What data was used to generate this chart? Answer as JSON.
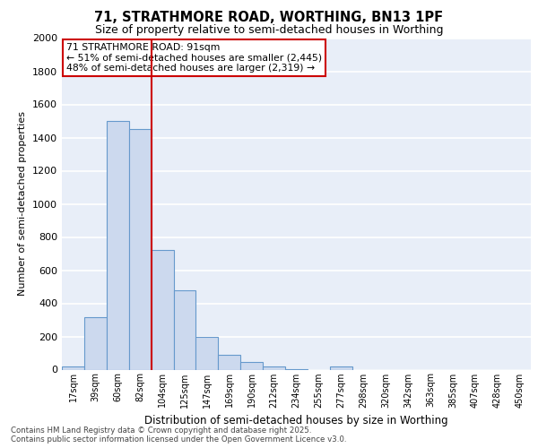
{
  "title1": "71, STRATHMORE ROAD, WORTHING, BN13 1PF",
  "title2": "Size of property relative to semi-detached houses in Worthing",
  "xlabel": "Distribution of semi-detached houses by size in Worthing",
  "ylabel": "Number of semi-detached properties",
  "categories": [
    "17sqm",
    "39sqm",
    "60sqm",
    "82sqm",
    "104sqm",
    "125sqm",
    "147sqm",
    "169sqm",
    "190sqm",
    "212sqm",
    "234sqm",
    "255sqm",
    "277sqm",
    "298sqm",
    "320sqm",
    "342sqm",
    "363sqm",
    "385sqm",
    "407sqm",
    "428sqm",
    "450sqm"
  ],
  "values": [
    20,
    315,
    1500,
    1450,
    720,
    480,
    195,
    90,
    45,
    20,
    5,
    0,
    20,
    0,
    0,
    0,
    0,
    0,
    0,
    0,
    0
  ],
  "bar_color": "#ccd9ee",
  "bar_edge_color": "#6699cc",
  "red_line_x": 3.5,
  "red_line_color": "#cc0000",
  "annotation_title": "71 STRATHMORE ROAD: 91sqm",
  "annotation_line1": "← 51% of semi-detached houses are smaller (2,445)",
  "annotation_line2": "48% of semi-detached houses are larger (2,319) →",
  "ylim": [
    0,
    2000
  ],
  "yticks": [
    0,
    200,
    400,
    600,
    800,
    1000,
    1200,
    1400,
    1600,
    1800,
    2000
  ],
  "bg_color": "#e8eef8",
  "grid_color": "#ffffff",
  "footer1": "Contains HM Land Registry data © Crown copyright and database right 2025.",
  "footer2": "Contains public sector information licensed under the Open Government Licence v3.0."
}
